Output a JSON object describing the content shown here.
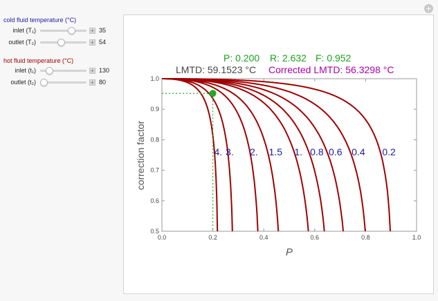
{
  "controls": {
    "cold_title": "cold fluid temperature (°C)",
    "hot_title": "hot fluid temperature (°C)",
    "cold_inlet": {
      "label": "inlet (T₁)",
      "value": "35",
      "level": 0.72
    },
    "cold_outlet": {
      "label": "outlet (T₂)",
      "value": "54",
      "level": 0.45
    },
    "hot_inlet": {
      "label": "inlet (t₁)",
      "value": "130",
      "level": 0.15
    },
    "hot_outlet": {
      "label": "outlet (t₂)",
      "value": "80",
      "level": 0.0
    }
  },
  "info": {
    "p_text": "P: 0.200",
    "r_text": "R: 2.632",
    "f_text": "F: 0.952",
    "lmtd_text": "LMTD: 59.1523 °C",
    "corrected_text": "Corrected LMTD: 56.3298 °C"
  },
  "colors": {
    "curve": "#a00000",
    "point": "#22aa22",
    "cold": "#1a1aa6",
    "hot": "#a00000",
    "p_color": "#1aa01a",
    "corrected_color": "#aa00aa",
    "curve_label": "#1a1aa6"
  },
  "chart_data": {
    "type": "line",
    "xlabel": "P",
    "ylabel": "correction factor",
    "xlim": [
      0,
      1
    ],
    "ylim": [
      0.5,
      1
    ],
    "x_ticks": [
      "0.0",
      "0.2",
      "0.4",
      "0.6",
      "0.8",
      "1.0"
    ],
    "y_ticks": [
      "0.5",
      "0.6",
      "0.7",
      "0.8",
      "0.9",
      "1.0"
    ],
    "grid": false,
    "series": [
      {
        "name": "4.",
        "R": 4.0,
        "label_x": 0.205,
        "label_y": 0.749
      },
      {
        "name": "3.",
        "R": 3.0,
        "label_x": 0.25,
        "label_y": 0.749
      },
      {
        "name": "2.",
        "R": 2.0,
        "label_x": 0.345,
        "label_y": 0.749
      },
      {
        "name": "1.5",
        "R": 1.5,
        "label_x": 0.42,
        "label_y": 0.749
      },
      {
        "name": "1.",
        "R": 1.0,
        "label_x": 0.52,
        "label_y": 0.749
      },
      {
        "name": "0.8",
        "R": 0.8,
        "label_x": 0.582,
        "label_y": 0.749
      },
      {
        "name": "0.6",
        "R": 0.6,
        "label_x": 0.655,
        "label_y": 0.749
      },
      {
        "name": "0.4",
        "R": 0.4,
        "label_x": 0.745,
        "label_y": 0.749
      },
      {
        "name": "0.2",
        "R": 0.2,
        "label_x": 0.865,
        "label_y": 0.749
      }
    ],
    "point": {
      "x": 0.2,
      "y": 0.952
    }
  }
}
